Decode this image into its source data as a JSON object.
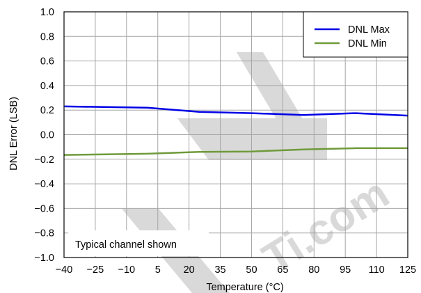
{
  "chart_data": {
    "type": "line",
    "title": "",
    "xlabel": "Temperature (°C)",
    "ylabel": "DNL Error (LSB)",
    "xlim": [
      -40,
      125
    ],
    "ylim": [
      -1.0,
      1.0
    ],
    "xticks": [
      -40,
      -25,
      -10,
      5,
      20,
      35,
      50,
      65,
      80,
      95,
      110,
      125
    ],
    "xtick_labels": [
      "−40",
      "−25",
      "−10",
      "5",
      "20",
      "35",
      "50",
      "65",
      "80",
      "95",
      "110",
      "125"
    ],
    "yticks": [
      -1.0,
      -0.8,
      -0.6,
      -0.4,
      -0.2,
      0.0,
      0.2,
      0.4,
      0.6,
      0.8,
      1.0
    ],
    "ytick_labels": [
      "−1.0",
      "−0.8",
      "−0.6",
      "−0.4",
      "−0.2",
      "0.0",
      "0.2",
      "0.4",
      "0.6",
      "0.8",
      "1.0"
    ],
    "grid": true,
    "legend_position": "top-right",
    "annotation": "Typical channel shown",
    "series": [
      {
        "name": "DNL Max",
        "color": "#0000e6",
        "x": [
          -40,
          0,
          25,
          50,
          75,
          100,
          125
        ],
        "y": [
          0.23,
          0.22,
          0.185,
          0.175,
          0.16,
          0.175,
          0.155
        ]
      },
      {
        "name": "DNL Min",
        "color": "#6f9a3a",
        "x": [
          -40,
          0,
          25,
          50,
          75,
          100,
          125
        ],
        "y": [
          -0.165,
          -0.155,
          -0.14,
          -0.137,
          -0.12,
          -0.11,
          -0.11
        ]
      }
    ]
  },
  "watermark": {
    "text": "Ti.com",
    "color": "#d9d9d9"
  }
}
